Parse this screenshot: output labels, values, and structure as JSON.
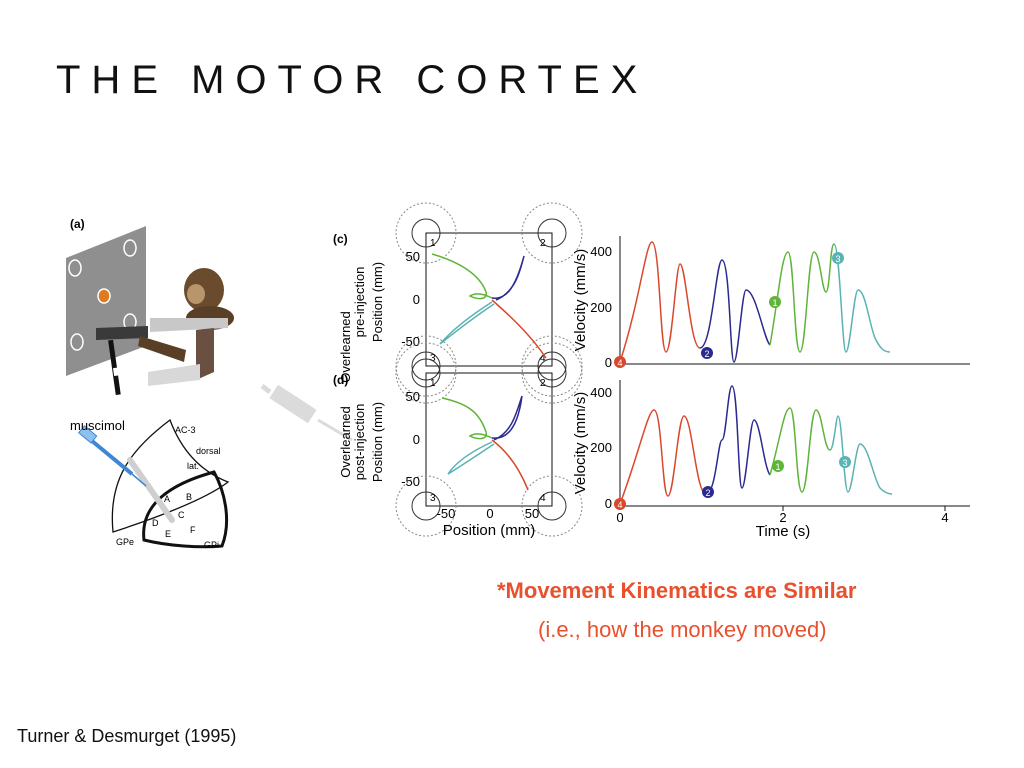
{
  "slide": {
    "title": "THE MOTOR CORTEX",
    "caption_main": "*Movement Kinematics are Similar",
    "caption_sub": "(i.e., how the monkey moved)",
    "citation": "Turner & Desmurget (1995)"
  },
  "figure": {
    "panel_a": {
      "label": "(a)",
      "injection_label": "muscimol",
      "region_labels": [
        "AC-3",
        "dorsal",
        "lat.",
        "A",
        "B",
        "C",
        "D",
        "E",
        "F",
        "GPe",
        "GPi"
      ]
    },
    "panel_c": {
      "label": "(c)",
      "ylabel_line1": "Overlearned",
      "ylabel_line2": "pre-injection",
      "ylabel_line3": "Position (mm)",
      "target_numbers": [
        "1",
        "2",
        "3",
        "4"
      ],
      "yticks": [
        "50",
        "0",
        "-50"
      ]
    },
    "panel_d": {
      "label": "(d)",
      "ylabel_line1": "Overlearned",
      "ylabel_line2": "post-injection",
      "ylabel_line3": "Position (mm)",
      "target_numbers": [
        "1",
        "2",
        "3",
        "4"
      ],
      "yticks": [
        "50",
        "0",
        "-50"
      ],
      "xticks": [
        "-50",
        "0",
        "50"
      ],
      "xlabel": "Position (mm)"
    },
    "velocity": {
      "ylabel": "Velocity (mm/s)",
      "yticks": [
        "400",
        "200",
        "0"
      ],
      "xticks": [
        "0",
        "2",
        "4"
      ],
      "xlabel": "Time (s)",
      "markers": [
        "4",
        "2",
        "1",
        "3"
      ]
    },
    "colors": {
      "red": "#d9482b",
      "blue": "#2a2a8f",
      "green": "#5fb43a",
      "teal": "#5ab3b3",
      "caption": "#e8502e"
    }
  }
}
